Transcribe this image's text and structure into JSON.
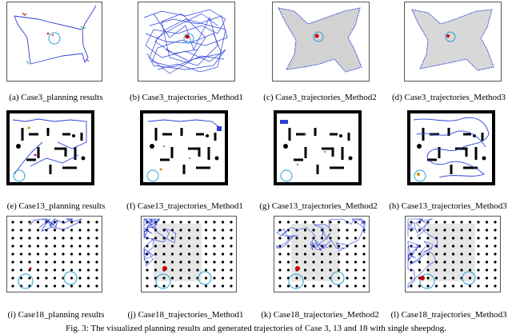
{
  "figure": {
    "caption": "Fig. 3: The visualized planning results and generated trajectories of Case 3, 13 and 18 with single sheepdog."
  },
  "rows": [
    {
      "case": "Case3",
      "panels": [
        {
          "caption": "(a) Case3_planning results"
        },
        {
          "caption": "(b) Case3_trajectories_Method1"
        },
        {
          "caption": "(c) Case3_trajectories_Method2"
        },
        {
          "caption": "(d) Case3_trajectories_Method3"
        }
      ]
    },
    {
      "case": "Case13",
      "panels": [
        {
          "caption": "(e) Case13_planning results"
        },
        {
          "caption": "(f) Case13_trajectories_Method1"
        },
        {
          "caption": "(g) Case13_trajectories_Method2"
        },
        {
          "caption": "(h) Case13_trajectories_Method3"
        }
      ]
    },
    {
      "case": "Case18",
      "panels": [
        {
          "caption": "(i) Case18_planning results"
        },
        {
          "caption": "(j) Case18_trajectories_Method1"
        },
        {
          "caption": "(k) Case18_trajectories_Method2"
        },
        {
          "caption": "(l) Case18_trajectories_Method3"
        }
      ]
    }
  ],
  "colors": {
    "trajectory": "#2b3fd6",
    "goal_circle": "#2a9fd6",
    "sheep": "#cc0000",
    "obstacle": "#000000",
    "shade": "#c8c8c8"
  }
}
